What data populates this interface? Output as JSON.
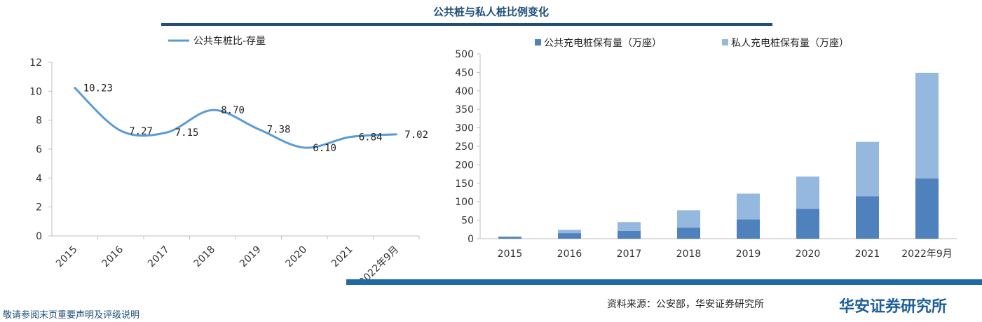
{
  "title": "公共桩与私人桩比例变化",
  "colors": {
    "title": "#1f4e79",
    "line": "#5b9bd5",
    "public": "#4f81bd",
    "private": "#95b8de",
    "band": "#1f6aa5"
  },
  "chart_data": [
    {
      "type": "line",
      "categories": [
        "2015",
        "2016",
        "2017",
        "2018",
        "2019",
        "2020",
        "2021",
        "2022年9月"
      ],
      "series": [
        {
          "name": "公共车桩比-存量",
          "values": [
            10.23,
            7.27,
            7.15,
            8.7,
            7.38,
            6.1,
            6.84,
            7.02
          ]
        }
      ],
      "data_labels": [
        "10.23",
        "7.27",
        "7.15",
        "8.70",
        "7.38",
        "6.10",
        "6.84",
        "7.02"
      ],
      "yticks": [
        "0",
        "2",
        "4",
        "6",
        "8",
        "10",
        "12"
      ],
      "ylim": [
        0,
        12
      ],
      "legend": "top-left",
      "grid": false
    },
    {
      "type": "bar",
      "stacked": true,
      "categories": [
        "2015",
        "2016",
        "2017",
        "2018",
        "2019",
        "2020",
        "2021",
        "2022年9月"
      ],
      "series": [
        {
          "name": "公共充电桩保有量（万座）",
          "values": [
            5,
            15,
            21,
            30,
            52,
            81,
            115,
            163
          ]
        },
        {
          "name": "私人充电桩保有量（万座）",
          "values": [
            1,
            9,
            24,
            47,
            70,
            87,
            147,
            286
          ]
        }
      ],
      "yticks": [
        "0",
        "50",
        "100",
        "150",
        "200",
        "250",
        "300",
        "350",
        "400",
        "450",
        "500"
      ],
      "ylim": [
        0,
        500
      ],
      "legend": "top",
      "grid": false
    }
  ],
  "footer": {
    "source": "资料来源：公安部，华安证券研究所",
    "brand": "华安证券研究所",
    "disclaimer": "敬请参阅末页重要声明及评级说明"
  }
}
